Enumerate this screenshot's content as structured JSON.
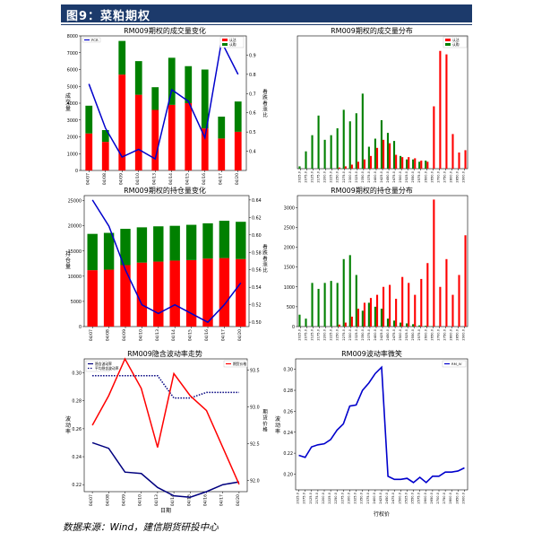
{
  "header": {
    "title": "图9：菜粕期权"
  },
  "footer": {
    "source": "数据来源：Wind，建信期货研投中心"
  },
  "colors": {
    "red": "#ff0000",
    "green": "#008000",
    "blue": "#0000cc",
    "navy": "#00007f",
    "header": "#1c3a6b"
  },
  "chart_data": [
    {
      "type": "bar",
      "title": "RM009期权的成交量变化",
      "categories": [
        "04/07",
        "04/08",
        "04/09",
        "04/10",
        "04/13",
        "04/14",
        "04/15",
        "04/16",
        "04/17",
        "04/20"
      ],
      "ylabel": "成交量",
      "y2label": "看跌看涨比",
      "ylim": [
        0,
        8000
      ],
      "y2lim": [
        0.3,
        1.0
      ],
      "yticks": [
        0,
        1000,
        2000,
        3000,
        4000,
        5000,
        6000,
        7000,
        8000
      ],
      "y2ticks": [
        0.4,
        0.5,
        0.6,
        0.7,
        0.8,
        0.9
      ],
      "legend": [
        "PCR",
        "认沽",
        "认购"
      ],
      "series": [
        {
          "name": "认沽",
          "kind": "bar",
          "color": "#ff0000",
          "values": [
            2200,
            1700,
            5700,
            4500,
            3600,
            3900,
            4000,
            2500,
            1900,
            2300
          ]
        },
        {
          "name": "认购",
          "kind": "bar",
          "color": "#008000",
          "values": [
            1650,
            700,
            2000,
            2000,
            1350,
            2800,
            2200,
            3500,
            1300,
            1800
          ]
        },
        {
          "name": "PCR",
          "kind": "line",
          "axis": "right",
          "color": "#0000cc",
          "values": [
            0.75,
            0.52,
            0.37,
            0.41,
            0.36,
            0.72,
            0.66,
            0.47,
            0.97,
            0.8
          ]
        }
      ]
    },
    {
      "type": "bar",
      "title": "RM009期权的成交量分布",
      "categories": [
        "2025.0",
        "2075.0",
        "2125.0",
        "2175.0",
        "2200.0",
        "2225.0",
        "2250.0",
        "2275.0",
        "2300.0",
        "2325.0",
        "2350.0",
        "2375.0",
        "2400.0",
        "2425.0",
        "2450.0",
        "2475.0",
        "2500.0",
        "2525.0",
        "2550.0",
        "2575.0",
        "2600.0",
        "2650.0",
        "2700.0",
        "2750.0",
        "2800.0",
        "2850.0",
        "2900.0"
      ],
      "ylim": [
        0,
        1150
      ],
      "legend": [
        "认沽",
        "认购"
      ],
      "series": [
        {
          "name": "认沽",
          "color": "#ff0000",
          "values": [
            0,
            0,
            0,
            0,
            0,
            0,
            10,
            20,
            35,
            60,
            80,
            110,
            180,
            250,
            220,
            120,
            100,
            100,
            90,
            70,
            60,
            540,
            1020,
            990,
            300,
            140,
            160
          ]
        },
        {
          "name": "认购",
          "color": "#008000",
          "values": [
            20,
            150,
            290,
            460,
            250,
            290,
            350,
            510,
            410,
            480,
            650,
            190,
            260,
            420,
            310,
            240,
            110,
            80,
            80,
            60,
            70,
            0,
            0,
            0,
            0,
            0,
            0
          ]
        }
      ]
    },
    {
      "type": "bar",
      "title": "RM009期权的持仓量变化",
      "categories": [
        "04/07",
        "04/08",
        "04/09",
        "04/10",
        "04/13",
        "04/14",
        "04/15",
        "04/16",
        "04/17",
        "04/20"
      ],
      "ylabel": "持仓量",
      "y2label": "看跌看涨比",
      "ylim": [
        0,
        26000
      ],
      "y2lim": [
        0.495,
        0.645
      ],
      "yticks": [
        0,
        5000,
        10000,
        15000,
        20000,
        25000
      ],
      "y2ticks": [
        0.5,
        0.52,
        0.54,
        0.56,
        0.58,
        0.6,
        0.62,
        0.64
      ],
      "series": [
        {
          "name": "认沽",
          "kind": "bar",
          "color": "#ff0000",
          "values": [
            11200,
            11300,
            12200,
            12700,
            12900,
            13100,
            13200,
            13500,
            13600,
            13400
          ]
        },
        {
          "name": "认购",
          "kind": "bar",
          "color": "#008000",
          "values": [
            7200,
            7300,
            7200,
            7000,
            7000,
            6900,
            7000,
            7000,
            7400,
            7400
          ]
        },
        {
          "name": "PCR",
          "kind": "line",
          "axis": "right",
          "color": "#0000cc",
          "values": [
            0.64,
            0.61,
            0.56,
            0.52,
            0.51,
            0.52,
            0.51,
            0.5,
            0.52,
            0.545
          ]
        }
      ]
    },
    {
      "type": "bar",
      "title": "RM009期权的持仓量分布",
      "categories": [
        "2025.0",
        "2075.0",
        "2125.0",
        "2175.0",
        "2200.0",
        "2225.0",
        "2250.0",
        "2275.0",
        "2300.0",
        "2325.0",
        "2350.0",
        "2375.0",
        "2400.0",
        "2425.0",
        "2450.0",
        "2475.0",
        "2500.0",
        "2525.0",
        "2550.0",
        "2575.0",
        "2600.0",
        "2650.0",
        "2700.0",
        "2750.0",
        "2800.0",
        "2850.0",
        "2900.0"
      ],
      "ylim": [
        0,
        3300
      ],
      "yticks": [
        0,
        500,
        1000,
        1500,
        2000,
        2500,
        3000
      ],
      "series": [
        {
          "name": "认沽",
          "color": "#ff0000",
          "values": [
            0,
            0,
            0,
            0,
            0,
            0,
            50,
            100,
            250,
            450,
            600,
            720,
            800,
            1000,
            1050,
            700,
            1250,
            1100,
            800,
            1200,
            1600,
            3200,
            1000,
            1700,
            800,
            1300,
            2300
          ]
        },
        {
          "name": "认购",
          "color": "#008000",
          "values": [
            300,
            200,
            1100,
            950,
            1100,
            1150,
            1100,
            1700,
            1800,
            1300,
            400,
            600,
            500,
            450,
            200,
            150,
            100,
            80,
            60,
            30,
            20,
            10,
            5,
            0,
            0,
            0,
            0
          ]
        }
      ]
    },
    {
      "type": "line",
      "title": "RM009隐含波动率走势",
      "categories": [
        "04/07",
        "04/08",
        "04/09",
        "04/10",
        "04/13",
        "04/14",
        "04/15",
        "04/16",
        "04/17",
        "04/20"
      ],
      "xlabel": "日期",
      "ylabel": "波动率",
      "y2label": "期货价格",
      "ylim": [
        0.215,
        0.31
      ],
      "y2lim": [
        91.85,
        93.65
      ],
      "yticks": [
        0.22,
        0.24,
        0.26,
        0.28,
        0.3
      ],
      "y2ticks": [
        92.0,
        92.5,
        93.0,
        93.5
      ],
      "series": [
        {
          "name": "隐含波动率",
          "style": "solid",
          "color": "#00007f",
          "axis": "left",
          "values": [
            0.25,
            0.246,
            0.229,
            0.228,
            0.218,
            0.212,
            0.211,
            0.215,
            0.22,
            0.222
          ]
        },
        {
          "name": "平均隐含波动率",
          "style": "dotted",
          "color": "#00007f",
          "axis": "left",
          "values": [
            0.298,
            0.298,
            0.298,
            0.298,
            0.298,
            0.282,
            0.282,
            0.286,
            0.286,
            0.286
          ]
        },
        {
          "name": "期货价格",
          "style": "solid",
          "color": "#ff0000",
          "axis": "right",
          "values": [
            92.75,
            93.15,
            93.65,
            93.25,
            92.45,
            93.45,
            93.15,
            92.95,
            92.45,
            91.95
          ]
        }
      ]
    },
    {
      "type": "line",
      "title": "RM009波动率微笑",
      "categories": [
        "2025.0",
        "2075.0",
        "2125.0",
        "2175.0",
        "2200.0",
        "2225.0",
        "2250.0",
        "2275.0",
        "2300.0",
        "2325.0",
        "2350.0",
        "2375.0",
        "2400.0",
        "2425.0",
        "2450.0",
        "2475.0",
        "2500.0",
        "2525.0",
        "2550.0",
        "2575.0",
        "2600.0",
        "2650.0",
        "2700.0",
        "2750.0",
        "2800.0",
        "2850.0",
        "2900.0"
      ],
      "xlabel": "行权价",
      "ylabel": "波动率",
      "ylim": [
        0.185,
        0.31
      ],
      "yticks": [
        0.2,
        0.22,
        0.24,
        0.26,
        0.28,
        0.3
      ],
      "series": [
        {
          "name": "RM_IV",
          "color": "#0000cc",
          "values": [
            0.218,
            0.216,
            0.226,
            0.228,
            0.229,
            0.233,
            0.242,
            0.248,
            0.265,
            0.266,
            0.28,
            0.287,
            0.296,
            0.302,
            0.198,
            0.195,
            0.195,
            0.196,
            0.192,
            0.197,
            0.192,
            0.198,
            0.198,
            0.202,
            0.202,
            0.203,
            0.206
          ]
        }
      ]
    }
  ]
}
